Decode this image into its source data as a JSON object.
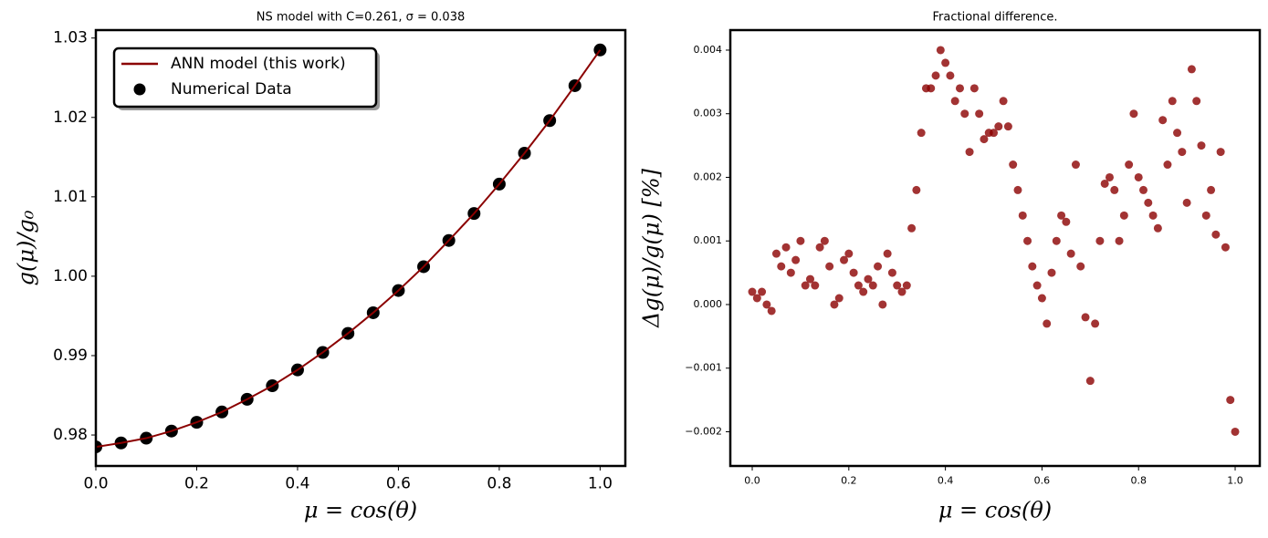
{
  "chart_data": [
    {
      "type": "line",
      "title": "NS model with C=0.261, σ = 0.038",
      "xlabel": "μ = cos(θ)",
      "ylabel": "g(μ)/g₀",
      "x": [
        0,
        0.05,
        0.1,
        0.15,
        0.2,
        0.25,
        0.3,
        0.35,
        0.4,
        0.45,
        0.5,
        0.55,
        0.6,
        0.65,
        0.7,
        0.75,
        0.8,
        0.85,
        0.9,
        0.95,
        1.0
      ],
      "series": [
        {
          "name": "ANN model (this work)",
          "type": "line",
          "color": "#8b0000",
          "values": [
            0.9785,
            0.979,
            0.9796,
            0.9805,
            0.9816,
            0.9829,
            0.9845,
            0.9862,
            0.9882,
            0.9904,
            0.9928,
            0.9954,
            0.9982,
            1.0012,
            1.0045,
            1.0079,
            1.0116,
            1.0155,
            1.0196,
            1.024,
            1.0285
          ]
        },
        {
          "name": "Numerical Data",
          "type": "scatter",
          "color": "#000000",
          "values": [
            0.9785,
            0.979,
            0.9796,
            0.9805,
            0.9816,
            0.9829,
            0.9845,
            0.9862,
            0.9882,
            0.9904,
            0.9928,
            0.9954,
            0.9982,
            1.0012,
            1.0045,
            1.0079,
            1.0116,
            1.0155,
            1.0196,
            1.024,
            1.0285
          ]
        }
      ],
      "xlim": [
        0,
        1.05
      ],
      "ylim": [
        0.9761,
        1.031
      ],
      "xticks": [
        {
          "value": 0,
          "label": "0.0"
        },
        0.2,
        0.4,
        0.6,
        0.8,
        {
          "value": 1,
          "label": "1.0"
        }
      ],
      "yticks": [
        0.98,
        0.99,
        {
          "value": 1,
          "label": "1.00"
        },
        1.01,
        1.02,
        1.03
      ],
      "legend": "upper left",
      "grid": false
    },
    {
      "type": "scatter",
      "title": "Fractional difference.",
      "xlabel": "μ = cos(θ)",
      "ylabel": "Δg(μ)/g(μ)  [%]",
      "x": [
        0,
        0.01,
        0.02,
        0.03,
        0.04,
        0.05,
        0.06,
        0.07,
        0.08,
        0.09,
        0.1,
        0.11,
        0.12,
        0.13,
        0.14,
        0.15,
        0.16,
        0.17,
        0.18,
        0.19,
        0.2,
        0.21,
        0.22,
        0.23,
        0.24,
        0.25,
        0.26,
        0.27,
        0.28,
        0.29,
        0.3,
        0.31,
        0.32,
        0.33,
        0.34,
        0.35,
        0.36,
        0.37,
        0.38,
        0.39,
        0.4,
        0.41,
        0.42,
        0.43,
        0.44,
        0.45,
        0.46,
        0.47,
        0.48,
        0.49,
        0.5,
        0.51,
        0.52,
        0.53,
        0.54,
        0.55,
        0.56,
        0.57,
        0.58,
        0.59,
        0.6,
        0.61,
        0.62,
        0.63,
        0.64,
        0.65,
        0.66,
        0.67,
        0.68,
        0.69,
        0.7,
        0.71,
        0.72,
        0.73,
        0.74,
        0.75,
        0.76,
        0.77,
        0.78,
        0.79,
        0.8,
        0.81,
        0.82,
        0.83,
        0.84,
        0.85,
        0.86,
        0.87,
        0.88,
        0.89,
        0.9,
        0.91,
        0.92,
        0.93,
        0.94,
        0.95,
        0.96,
        0.97,
        0.98,
        0.99,
        1.0
      ],
      "values": [
        0.0002,
        0.0001,
        0.0002,
        0.0,
        -0.0001,
        0.0008,
        0.0006,
        0.0009,
        0.0005,
        0.0007,
        0.001,
        0.0003,
        0.0004,
        0.0003,
        0.0009,
        0.001,
        0.0006,
        0.0,
        0.0001,
        0.0007,
        0.0008,
        0.0005,
        0.0003,
        0.0002,
        0.0004,
        0.0003,
        0.0006,
        0.0,
        0.0008,
        0.0005,
        0.0003,
        0.0002,
        0.0003,
        0.0012,
        0.0018,
        0.0027,
        0.0034,
        0.0034,
        0.0036,
        0.004,
        0.0038,
        0.0036,
        0.0032,
        0.0034,
        0.003,
        0.0024,
        0.0034,
        0.003,
        0.0026,
        0.0027,
        0.0027,
        0.0028,
        0.0032,
        0.0028,
        0.0022,
        0.0018,
        0.0014,
        0.001,
        0.0006,
        0.0003,
        0.0001,
        -0.0003,
        0.0005,
        0.001,
        0.0014,
        0.0013,
        0.0008,
        0.0022,
        0.0006,
        -0.0002,
        -0.0012,
        -0.0003,
        0.001,
        0.0019,
        0.002,
        0.0018,
        0.001,
        0.0014,
        0.0022,
        0.003,
        0.002,
        0.0018,
        0.0016,
        0.0014,
        0.0012,
        0.0029,
        0.0022,
        0.0032,
        0.0027,
        0.0024,
        0.0016,
        0.0037,
        0.0032,
        0.0025,
        0.0014,
        0.0018,
        0.0011,
        0.0024,
        0.0009,
        -0.0015,
        -0.002
      ],
      "color": "#8b0000",
      "xlim": [
        -0.0454,
        1.051
      ],
      "ylim": [
        -0.002538,
        0.004315
      ],
      "xticks": [
        {
          "value": 0,
          "label": "0.0"
        },
        0.2,
        0.4,
        0.6,
        0.8,
        {
          "value": 1,
          "label": "1.0"
        }
      ],
      "yticks": [
        {
          "value": -0.002,
          "label": "−0.002"
        },
        {
          "value": -0.001,
          "label": "−0.001"
        },
        {
          "value": 0,
          "label": "0.000"
        },
        0.001,
        0.002,
        0.003,
        0.004
      ],
      "grid": false
    }
  ]
}
